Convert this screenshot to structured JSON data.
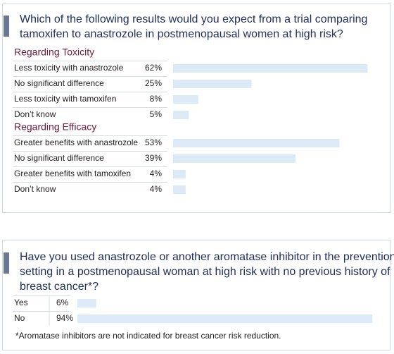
{
  "chart_data": [
    {
      "type": "bar",
      "title": [
        "Which of the following results would you expect from a trial comparing",
        "tamoxifen to anastrozole in postmenopausal women at high risk?"
      ],
      "groups": [
        {
          "name": "Regarding Toxicity",
          "categories": [
            "Less toxicity with anastrozole",
            "No significant difference",
            "Less toxicity with tamoxifen",
            "Don’t know"
          ],
          "values": [
            62,
            25,
            8,
            5
          ],
          "value_labels": [
            "62%",
            "25%",
            "8%",
            "5%"
          ]
        },
        {
          "name": "Regarding Efficacy",
          "categories": [
            "Greater benefits with anastrozole",
            "No significant difference",
            "Greater benefits with tamoxifen",
            "Don’t know"
          ],
          "values": [
            53,
            39,
            4,
            4
          ],
          "value_labels": [
            "53%",
            "39%",
            "4%",
            "4%"
          ]
        }
      ],
      "color": "#dce9f7"
    },
    {
      "type": "bar",
      "title": [
        "Have you used anastrozole or another aromatase inhibitor in the prevention",
        "setting in a postmenopausal woman at high risk with no previous history of",
        "breast cancer*?"
      ],
      "categories": [
        "Yes",
        "No"
      ],
      "values": [
        6,
        94
      ],
      "value_labels": [
        "6%",
        "94%"
      ],
      "color": "#dce9f7",
      "note": "*Aromatase inhibitors are not indicated for breast cancer risk reduction."
    }
  ]
}
